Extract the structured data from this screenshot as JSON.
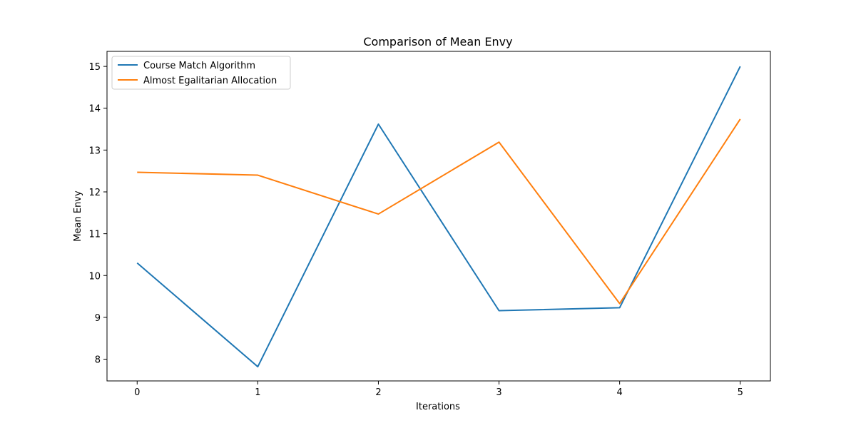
{
  "chart_data": {
    "type": "line",
    "title": "Comparison of Mean Envy",
    "xlabel": "Iterations",
    "ylabel": "Mean Envy",
    "x": [
      0,
      1,
      2,
      3,
      4,
      5
    ],
    "xlim": [
      -0.25,
      5.25
    ],
    "ylim": [
      7.48,
      15.36
    ],
    "xticks": [
      0,
      1,
      2,
      3,
      4,
      5
    ],
    "yticks": [
      8,
      9,
      10,
      11,
      12,
      13,
      14,
      15
    ],
    "grid": false,
    "legend_position": "upper left",
    "series": [
      {
        "name": "Course Match Algorithm",
        "color": "#1f77b4",
        "values": [
          10.3,
          7.82,
          13.62,
          9.16,
          9.23,
          15.0
        ]
      },
      {
        "name": "Almost Egalitarian Allocation",
        "color": "#ff7f0e",
        "values": [
          12.47,
          12.4,
          11.47,
          13.19,
          9.33,
          13.74
        ]
      }
    ]
  }
}
